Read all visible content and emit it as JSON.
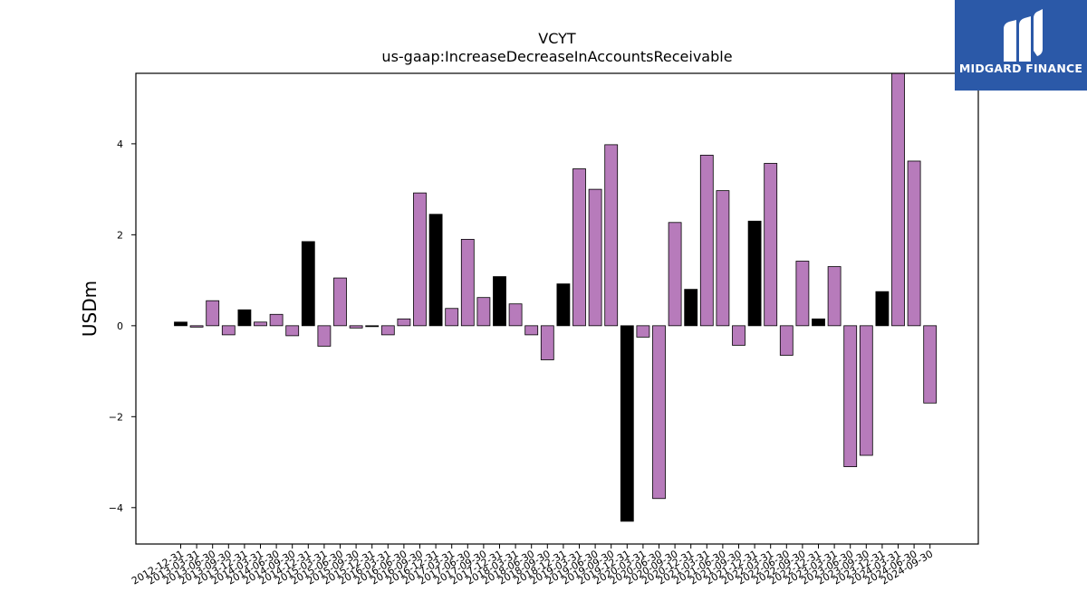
{
  "chart_data": {
    "type": "bar",
    "title": "VCYT",
    "subtitle": "us-gaap:IncreaseDecreaseInAccountsReceivable",
    "xlabel": "",
    "ylabel": "USDm",
    "ylim": [
      -4.8,
      5.55
    ],
    "yticks": [
      -4,
      -2,
      0,
      2,
      4
    ],
    "ytick_labels": [
      "−4",
      "−2",
      "0",
      "2",
      "4"
    ],
    "grid": false,
    "colors": {
      "q4": "#000000",
      "quarter": "#b77bbb",
      "edge": "#000000"
    },
    "categories": [
      "2012-12-31",
      "2013-03-31",
      "2013-06-30",
      "2013-09-30",
      "2013-12-31",
      "2014-03-31",
      "2014-06-30",
      "2014-09-30",
      "2014-12-31",
      "2015-03-31",
      "2015-06-30",
      "2015-09-30",
      "2015-12-31",
      "2016-03-31",
      "2016-06-30",
      "2016-09-30",
      "2016-12-31",
      "2017-03-31",
      "2017-06-30",
      "2017-09-30",
      "2017-12-31",
      "2018-03-31",
      "2018-06-30",
      "2018-09-30",
      "2018-12-31",
      "2019-03-31",
      "2019-06-30",
      "2019-09-30",
      "2019-12-31",
      "2020-03-31",
      "2020-06-30",
      "2020-09-30",
      "2020-12-31",
      "2021-03-31",
      "2021-06-30",
      "2021-09-30",
      "2021-12-31",
      "2022-03-31",
      "2022-06-30",
      "2022-09-30",
      "2022-12-31",
      "2023-03-31",
      "2023-06-30",
      "2023-09-30",
      "2023-12-31",
      "2024-03-31",
      "2024-06-30",
      "2024-09-30"
    ],
    "values": [
      0.08,
      -0.03,
      0.55,
      -0.2,
      0.35,
      0.08,
      0.25,
      -0.22,
      1.85,
      -0.45,
      1.05,
      -0.05,
      -0.02,
      -0.2,
      0.15,
      2.92,
      2.45,
      0.38,
      1.9,
      0.62,
      1.08,
      0.48,
      -0.2,
      -0.75,
      0.92,
      3.45,
      3.0,
      3.98,
      -4.3,
      -0.25,
      -3.8,
      2.27,
      0.8,
      3.75,
      2.97,
      -0.43,
      2.3,
      3.57,
      -0.65,
      1.42,
      0.15,
      1.3,
      -3.1,
      -2.85,
      0.75,
      5.6,
      3.62,
      -1.7
    ],
    "is_q4": [
      true,
      false,
      false,
      false,
      true,
      false,
      false,
      false,
      true,
      false,
      false,
      false,
      true,
      false,
      false,
      false,
      true,
      false,
      false,
      false,
      true,
      false,
      false,
      false,
      true,
      false,
      false,
      false,
      true,
      false,
      false,
      false,
      true,
      false,
      false,
      false,
      true,
      false,
      false,
      false,
      true,
      false,
      false,
      false,
      true,
      false,
      false,
      false
    ]
  },
  "logo": {
    "text": "MIDGARD FINANCE",
    "icon": "midgard-logo-icon"
  }
}
